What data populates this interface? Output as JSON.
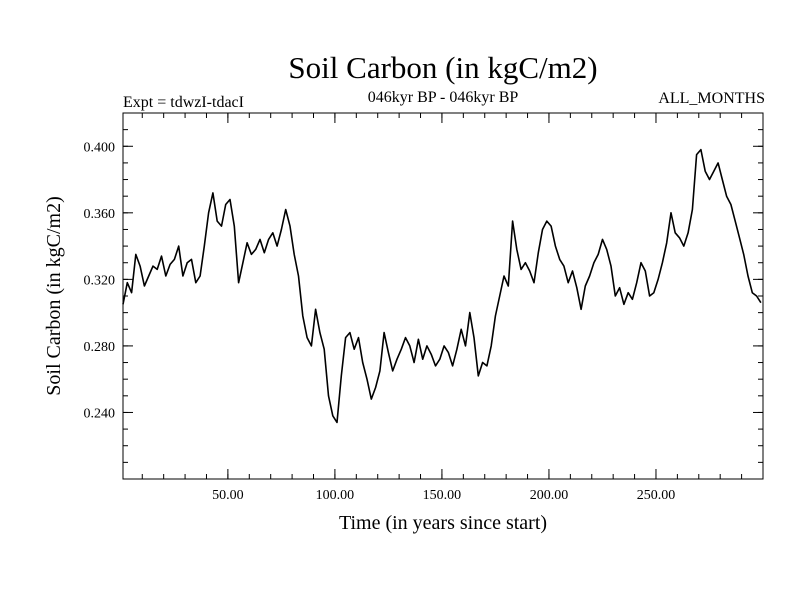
{
  "chart_data": {
    "type": "line",
    "title": "Soil Carbon (in kgC/m2)",
    "subtitle_left": "Expt = tdwzI-tdacI",
    "subtitle_center": "046kyr BP - 046kyr BP",
    "subtitle_right": "ALL_MONTHS",
    "xlabel": "Time (in years since start)",
    "ylabel": "Soil Carbon (in kgC/m2)",
    "xlim": [
      1,
      300
    ],
    "ylim": [
      0.2,
      0.42
    ],
    "x_ticks": [
      {
        "value": 50,
        "label": "50.00"
      },
      {
        "value": 100,
        "label": "100.00"
      },
      {
        "value": 150,
        "label": "150.00"
      },
      {
        "value": 200,
        "label": "200.00"
      },
      {
        "value": 250,
        "label": "250.00"
      }
    ],
    "y_ticks": [
      {
        "value": 0.24,
        "label": "0.240"
      },
      {
        "value": 0.28,
        "label": "0.280"
      },
      {
        "value": 0.32,
        "label": "0.320"
      },
      {
        "value": 0.36,
        "label": "0.360"
      },
      {
        "value": 0.4,
        "label": "0.400"
      }
    ],
    "x_minor_step": 10,
    "y_minor_step": 0.01,
    "series": [
      {
        "color": "#000000",
        "x": [
          1,
          3,
          5,
          7,
          9,
          11,
          13,
          15,
          17,
          19,
          21,
          23,
          25,
          27,
          29,
          31,
          33,
          35,
          37,
          39,
          41,
          43,
          45,
          47,
          49,
          51,
          53,
          55,
          57,
          59,
          61,
          63,
          65,
          67,
          69,
          71,
          73,
          75,
          77,
          79,
          81,
          83,
          85,
          87,
          89,
          91,
          93,
          95,
          97,
          99,
          101,
          103,
          105,
          107,
          109,
          111,
          113,
          115,
          117,
          119,
          121,
          123,
          125,
          127,
          129,
          131,
          133,
          135,
          137,
          139,
          141,
          143,
          145,
          147,
          149,
          151,
          153,
          155,
          157,
          159,
          161,
          163,
          165,
          167,
          169,
          171,
          173,
          175,
          177,
          179,
          181,
          183,
          185,
          187,
          189,
          191,
          193,
          195,
          197,
          199,
          201,
          203,
          205,
          207,
          209,
          211,
          213,
          215,
          217,
          219,
          221,
          223,
          225,
          227,
          229,
          231,
          233,
          235,
          237,
          239,
          241,
          243,
          245,
          247,
          249,
          251,
          253,
          255,
          257,
          259,
          261,
          263,
          265,
          267,
          269,
          271,
          273,
          275,
          277,
          279,
          281,
          283,
          285,
          287,
          289,
          291,
          293,
          295,
          297,
          299
        ],
        "values": [
          0.305,
          0.318,
          0.312,
          0.335,
          0.328,
          0.316,
          0.322,
          0.328,
          0.326,
          0.334,
          0.322,
          0.329,
          0.332,
          0.34,
          0.322,
          0.33,
          0.332,
          0.318,
          0.322,
          0.34,
          0.36,
          0.372,
          0.355,
          0.352,
          0.365,
          0.368,
          0.352,
          0.318,
          0.33,
          0.342,
          0.335,
          0.338,
          0.344,
          0.336,
          0.344,
          0.348,
          0.34,
          0.35,
          0.362,
          0.352,
          0.335,
          0.322,
          0.298,
          0.285,
          0.28,
          0.302,
          0.288,
          0.278,
          0.25,
          0.238,
          0.234,
          0.262,
          0.285,
          0.288,
          0.278,
          0.285,
          0.27,
          0.26,
          0.248,
          0.255,
          0.265,
          0.288,
          0.276,
          0.265,
          0.272,
          0.278,
          0.285,
          0.28,
          0.27,
          0.284,
          0.272,
          0.28,
          0.275,
          0.268,
          0.272,
          0.28,
          0.276,
          0.268,
          0.278,
          0.29,
          0.28,
          0.3,
          0.285,
          0.262,
          0.27,
          0.268,
          0.28,
          0.298,
          0.31,
          0.322,
          0.316,
          0.355,
          0.338,
          0.326,
          0.33,
          0.325,
          0.318,
          0.336,
          0.35,
          0.355,
          0.352,
          0.34,
          0.332,
          0.328,
          0.318,
          0.325,
          0.315,
          0.302,
          0.316,
          0.322,
          0.33,
          0.335,
          0.344,
          0.338,
          0.328,
          0.31,
          0.315,
          0.305,
          0.312,
          0.308,
          0.318,
          0.33,
          0.325,
          0.31,
          0.312,
          0.32,
          0.33,
          0.342,
          0.36,
          0.348,
          0.345,
          0.34,
          0.348,
          0.362,
          0.395,
          0.398,
          0.385,
          0.38,
          0.385,
          0.39,
          0.38,
          0.37,
          0.365,
          0.355,
          0.345,
          0.335,
          0.322,
          0.312,
          0.31,
          0.306
        ]
      }
    ]
  }
}
